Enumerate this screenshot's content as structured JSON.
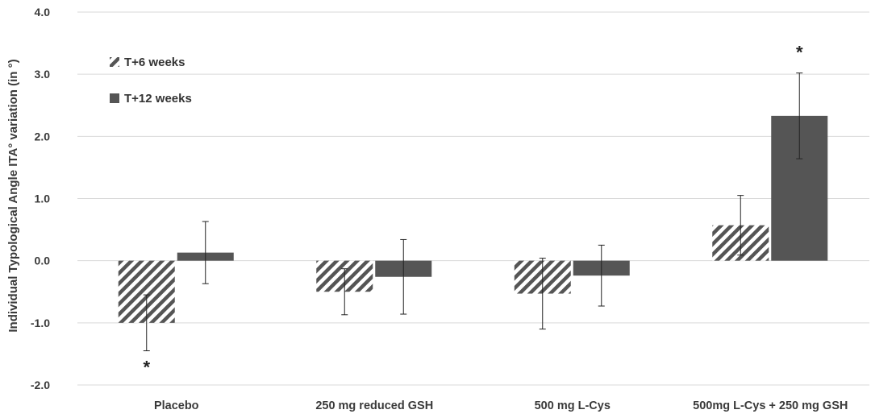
{
  "chart_data": {
    "type": "bar",
    "ylabel": "Individual Typological Angle ITA° variation (in °)",
    "categories": [
      "Placebo",
      "250 mg reduced GSH",
      "500 mg L-Cys",
      "500mg L-Cys + 250 mg GSH"
    ],
    "ylim": [
      -2.0,
      4.0
    ],
    "yticks": [
      -2.0,
      -1.0,
      0.0,
      1.0,
      2.0,
      3.0,
      4.0
    ],
    "ytick_labels": [
      "-2.0",
      "-1.0",
      "0.0",
      "1.0",
      "2.0",
      "3.0",
      "4.0"
    ],
    "grid": true,
    "legend_position": "top-left",
    "series": [
      {
        "name": "T+6 weeks",
        "pattern": "hatched",
        "color": "#555555",
        "values": [
          -1.0,
          -0.5,
          -0.53,
          0.57
        ],
        "errors": [
          0.45,
          0.37,
          0.57,
          0.48
        ],
        "annotations": [
          "*",
          "",
          "",
          ""
        ]
      },
      {
        "name": "T+12 weeks",
        "pattern": "solid",
        "color": "#555555",
        "values": [
          0.13,
          -0.26,
          -0.24,
          2.33
        ],
        "errors": [
          0.5,
          0.6,
          0.49,
          0.69
        ],
        "annotations": [
          "",
          "",
          "",
          "*"
        ]
      }
    ]
  }
}
